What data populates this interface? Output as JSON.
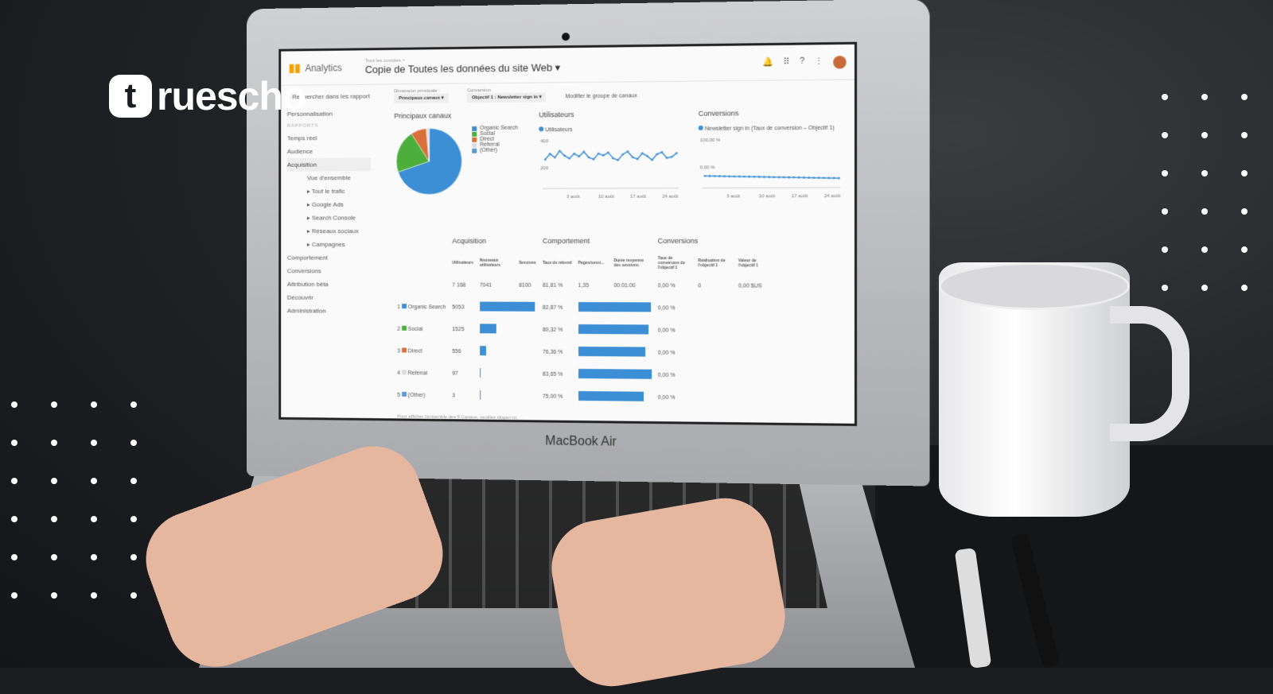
{
  "logo": {
    "mark": "t",
    "word": "ruescho"
  },
  "laptop": {
    "brand": "MacBook Air"
  },
  "ga": {
    "app": "Analytics",
    "crumb": "Tous les comptes >",
    "title": "Copie de Toutes les données du site Web ▾",
    "search_placeholder": "Rechercher dans les rapport",
    "dimension_label": "Dimension principale :",
    "dimension_value": "Principaux canaux ▾",
    "conversion_label": "Conversion",
    "conversion_value": "Objectif 1 : Newsletter sign in ▾",
    "modify_link": "Modifier le groupe de canaux",
    "sidebar": [
      {
        "label": "Personnalisation",
        "type": "item"
      },
      {
        "label": "RAPPORTS",
        "type": "hdr"
      },
      {
        "label": "Temps réel",
        "type": "item"
      },
      {
        "label": "Audience",
        "type": "item"
      },
      {
        "label": "Acquisition",
        "type": "act"
      },
      {
        "label": "Vue d'ensemble",
        "type": "sub"
      },
      {
        "label": "▸ Tout le trafic",
        "type": "sub"
      },
      {
        "label": "▸ Google Ads",
        "type": "sub"
      },
      {
        "label": "▸ Search Console",
        "type": "sub"
      },
      {
        "label": "▸ Réseaux sociaux",
        "type": "sub"
      },
      {
        "label": "▸ Campagnes",
        "type": "sub"
      },
      {
        "label": "Comportement",
        "type": "item"
      },
      {
        "label": "Conversions",
        "type": "item"
      },
      {
        "label": "Attribution bêta",
        "type": "item"
      },
      {
        "label": "Découvrir",
        "type": "item"
      },
      {
        "label": "Administration",
        "type": "item"
      }
    ],
    "pie": {
      "title": "Principaux canaux",
      "legend": [
        {
          "label": "Organic Search",
          "color": "#3c8fd5",
          "value": 5053
        },
        {
          "label": "Social",
          "color": "#4caf3c",
          "value": 1525
        },
        {
          "label": "Direct",
          "color": "#d9703c",
          "value": 556
        },
        {
          "label": "Referral",
          "color": "#dddddd",
          "value": 97
        },
        {
          "label": "(Other)",
          "color": "#5b9bd5",
          "value": 3
        }
      ]
    },
    "users_chart": {
      "title": "Utilisateurs",
      "legend": "Utilisateurs",
      "yticks": [
        "400",
        "200"
      ],
      "xticks": [
        "3 août",
        "10 août",
        "17 août",
        "24 août"
      ]
    },
    "conv_chart": {
      "title": "Conversions",
      "legend": "Newsletter sign in (Taux de conversion – Objectif 1)",
      "yticks": [
        "100,00 %",
        "0,00 %"
      ],
      "xticks": [
        "3 août",
        "10 août",
        "17 août",
        "24 août"
      ]
    },
    "table": {
      "groups": [
        "Acquisition",
        "Comportement",
        "Conversions"
      ],
      "headers": [
        "Utilisateurs",
        "Nouveaux utilisateurs",
        "Sessions",
        "Taux de rebond",
        "Pages/sessi...",
        "Durée moyenne des sessions",
        "Taux de conversion de l'objectif 1",
        "Réalisation de l'objectif 1",
        "Valeur de l'objectif 1"
      ],
      "totals": [
        "7 168",
        "7041",
        "8100",
        "81,81 %",
        "1,35",
        "00:01:00",
        "0,00 %",
        "0",
        "0,00 $US"
      ],
      "rows": [
        {
          "n": "1",
          "channel": "Organic Search",
          "color": "#3c8fd5",
          "users": "5053",
          "users_pct": 70,
          "bounce": "82,87 %",
          "bounce_val": 82.87,
          "conv": "0,00 %"
        },
        {
          "n": "2",
          "channel": "Social",
          "color": "#4caf3c",
          "users": "1525",
          "users_pct": 21,
          "bounce": "80,32 %",
          "bounce_val": 80.32,
          "conv": "0,00 %"
        },
        {
          "n": "3",
          "channel": "Direct",
          "color": "#d9703c",
          "users": "556",
          "users_pct": 8,
          "bounce": "76,36 %",
          "bounce_val": 76.36,
          "conv": "0,00 %"
        },
        {
          "n": "4",
          "channel": "Referral",
          "color": "#dddddd",
          "users": "97",
          "users_pct": 1.4,
          "bounce": "83,65 %",
          "bounce_val": 83.65,
          "conv": "0,00 %"
        },
        {
          "n": "5",
          "channel": "(Other)",
          "color": "#5b9bd5",
          "users": "3",
          "users_pct": 0.1,
          "bounce": "75,00 %",
          "bounce_val": 75.0,
          "conv": "0,00 %"
        }
      ],
      "footer": "Pour afficher l'ensemble des 5 Canaux, veuillez cliquer ici."
    }
  }
}
